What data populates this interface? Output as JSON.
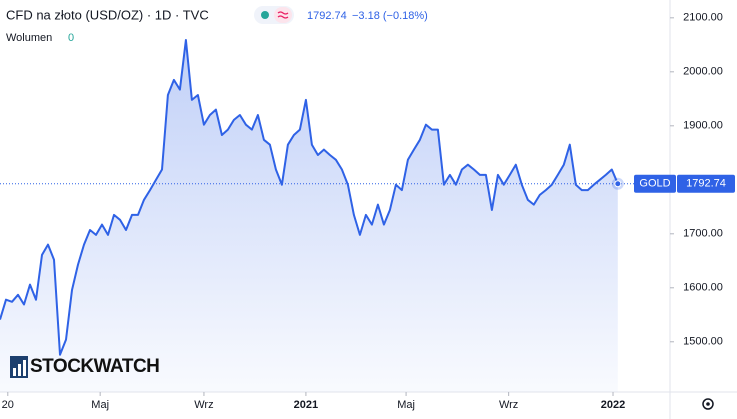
{
  "chart_data": {
    "type": "line",
    "title": "CFD na złoto (USD/OZ) · 1D · TVC",
    "change": "−3.18 (−0.18%)",
    "volume_label": "Wolumen",
    "volume_value": 0,
    "symbol": "GOLD",
    "watermark": "STOCKWATCH",
    "color": "#2f62e6",
    "values": [
      1541,
      1578,
      1574,
      1587,
      1569,
      1606,
      1578,
      1661,
      1680,
      1652,
      1476,
      1504,
      1596,
      1643,
      1680,
      1707,
      1698,
      1717,
      1698,
      1735,
      1726,
      1707,
      1735,
      1735,
      1763,
      1781,
      1800,
      1819,
      1957,
      1985,
      1967,
      2059,
      1948,
      1957,
      1902,
      1920,
      1930,
      1883,
      1893,
      1911,
      1920,
      1902,
      1893,
      1920,
      1874,
      1865,
      1819,
      1791,
      1865,
      1883,
      1893,
      1948,
      1865,
      1846,
      1856,
      1846,
      1837,
      1819,
      1791,
      1735,
      1698,
      1735,
      1717,
      1754,
      1717,
      1744,
      1791,
      1781,
      1837,
      1856,
      1874,
      1902,
      1893,
      1893,
      1791,
      1809,
      1791,
      1819,
      1828,
      1819,
      1809,
      1809,
      1744,
      1809,
      1791,
      1809,
      1828,
      1791,
      1763,
      1754,
      1772,
      1781,
      1791,
      1809,
      1828,
      1865,
      1791,
      1781,
      1781,
      1791,
      1800,
      1809,
      1819,
      1792.74
    ],
    "xlim": [
      0,
      111.7
    ],
    "xticks": [
      {
        "value": 1.3,
        "label": "20"
      },
      {
        "value": 16.7,
        "label": "Maj"
      },
      {
        "value": 34,
        "label": "Wrz"
      },
      {
        "value": 51,
        "label": "2021"
      },
      {
        "value": 67.7,
        "label": "Maj"
      },
      {
        "value": 84.8,
        "label": "Wrz"
      },
      {
        "value": 102.2,
        "label": "2022"
      }
    ],
    "ylim": [
      1407,
      2133
    ],
    "yticks": [
      {
        "value": 1500,
        "label": "1500.00"
      },
      {
        "value": 1600,
        "label": "1600.00"
      },
      {
        "value": 1700,
        "label": "1700.00"
      },
      {
        "value": 1900,
        "label": "1900.00"
      },
      {
        "value": 2000,
        "label": "2000.00"
      },
      {
        "value": 2100,
        "label": "2100.00"
      }
    ]
  }
}
